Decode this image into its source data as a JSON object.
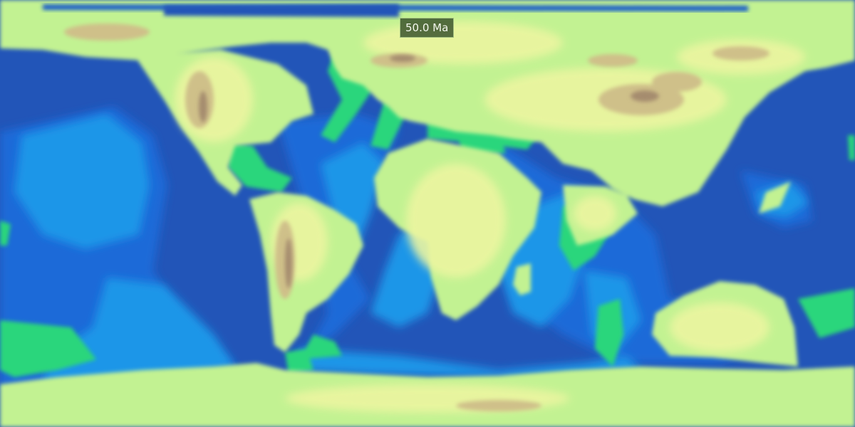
{
  "map": {
    "time_label": "50.0 Ma",
    "projection": "equirectangular",
    "colors": {
      "deep_ocean": "#2255b8",
      "ocean": "#1e6ad8",
      "shelf_ocean": "#1a96e8",
      "shallow_sea": "#2cd67c",
      "lowland": "#c2f292",
      "plain": "#ecf5a0",
      "highland": "#cfc089",
      "peak": "#a58c6e"
    }
  }
}
